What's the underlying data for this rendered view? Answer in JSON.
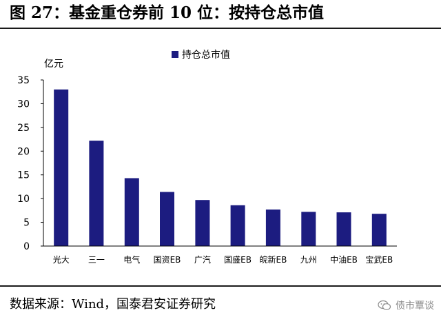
{
  "header": {
    "title": "图 27：基金重仓券前 10 位：按持仓总市值"
  },
  "footer": {
    "source": "数据来源：Wind，国泰君安证券研究",
    "watermark": "债市覃谈"
  },
  "colors": {
    "bar": "#1c1c80",
    "axis": "#000000"
  },
  "icons": {
    "watermark_icon": "wechat-icon"
  },
  "chart_data": {
    "type": "bar",
    "title": "",
    "ylabel": "亿元",
    "xlabel": "",
    "ylim": [
      0,
      35
    ],
    "yticks": [
      0,
      5,
      10,
      15,
      20,
      25,
      30,
      35
    ],
    "grid": false,
    "legend_position": "top-center",
    "categories": [
      "光大",
      "三一",
      "电气",
      "国资EB",
      "广汽",
      "国盛EB",
      "皖新EB",
      "九州",
      "中油EB",
      "宝武EB"
    ],
    "series": [
      {
        "name": "持仓总市值",
        "values": [
          33.0,
          22.2,
          14.3,
          11.4,
          9.7,
          8.6,
          7.7,
          7.2,
          7.1,
          6.8
        ]
      }
    ]
  }
}
